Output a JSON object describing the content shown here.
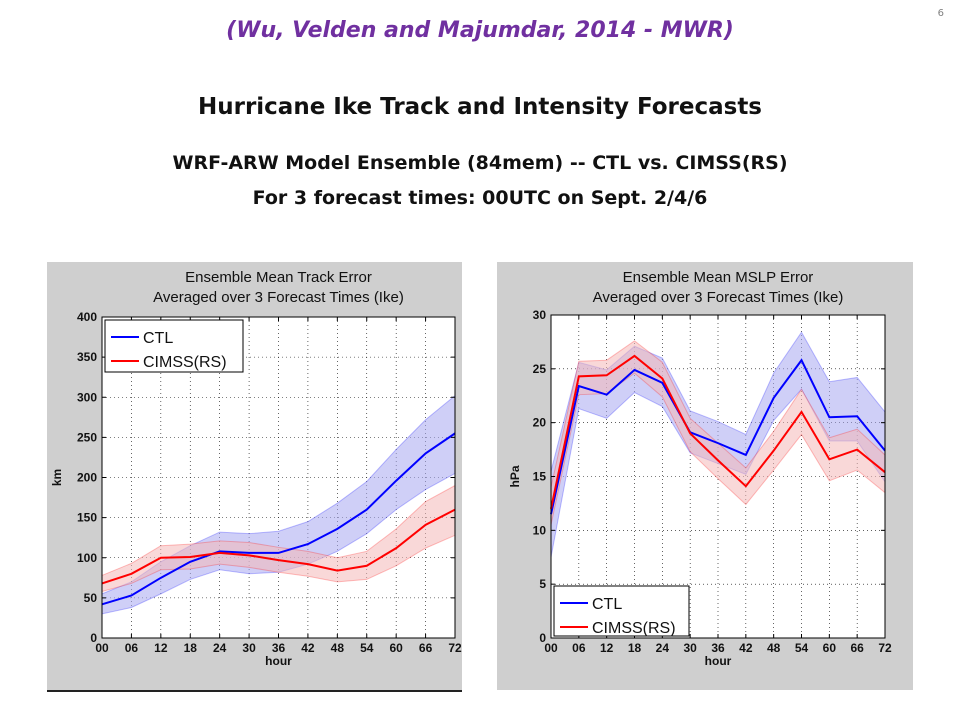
{
  "page_number": "6",
  "citation": "(Wu, Velden and Majumdar, 2014 - MWR)",
  "title": "Hurricane Ike Track and Intensity Forecasts",
  "subtitle_line1": "WRF-ARW Model Ensemble (84mem) -- CTL vs. CIMSS(RS)",
  "subtitle_line2": "For 3 forecast times: 00UTC on Sept. 2/4/6",
  "colors": {
    "ctl": "#0000ff",
    "cimss": "#ff0000",
    "ctl_band": "#a8a8f0",
    "cimss_band": "#f4b8b8",
    "overlap": "#d8a8e0"
  },
  "chart_data": [
    {
      "type": "line",
      "title": "Ensemble Mean Track Error",
      "subtitle": "Averaged over 3 Forecast Times (Ike)",
      "xlabel": "hour",
      "ylabel": "km",
      "x": [
        0,
        6,
        12,
        18,
        24,
        30,
        36,
        42,
        48,
        54,
        60,
        66,
        72
      ],
      "xticklabels": [
        "00",
        "06",
        "12",
        "18",
        "24",
        "30",
        "36",
        "42",
        "48",
        "54",
        "60",
        "66",
        "72"
      ],
      "ylim": [
        0,
        400
      ],
      "yticks": [
        0,
        50,
        100,
        150,
        200,
        250,
        300,
        350,
        400
      ],
      "grid": true,
      "legend_position": "top-left",
      "series": [
        {
          "name": "CTL",
          "values": [
            42,
            53,
            75,
            95,
            108,
            106,
            106,
            117,
            136,
            160,
            196,
            230,
            255
          ],
          "lower": [
            30,
            38,
            55,
            73,
            85,
            80,
            82,
            92,
            108,
            130,
            160,
            185,
            205
          ],
          "upper": [
            55,
            70,
            95,
            115,
            132,
            130,
            133,
            145,
            168,
            195,
            235,
            272,
            302
          ]
        },
        {
          "name": "CIMSS(RS)",
          "values": [
            68,
            80,
            100,
            101,
            106,
            103,
            97,
            92,
            84,
            90,
            112,
            141,
            160
          ],
          "lower": [
            58,
            68,
            85,
            86,
            92,
            88,
            82,
            77,
            70,
            73,
            90,
            112,
            128
          ],
          "upper": [
            78,
            93,
            115,
            117,
            121,
            119,
            113,
            108,
            100,
            108,
            136,
            170,
            190
          ]
        }
      ]
    },
    {
      "type": "line",
      "title": "Ensemble Mean MSLP Error",
      "subtitle": "Averaged over 3 Forecast Times (Ike)",
      "xlabel": "hour",
      "ylabel": "hPa",
      "x": [
        0,
        6,
        12,
        18,
        24,
        30,
        36,
        42,
        48,
        54,
        60,
        66,
        72
      ],
      "xticklabels": [
        "00",
        "06",
        "12",
        "18",
        "24",
        "30",
        "36",
        "42",
        "48",
        "54",
        "60",
        "66",
        "72"
      ],
      "ylim": [
        0,
        30
      ],
      "yticks": [
        0,
        5,
        10,
        15,
        20,
        25,
        30
      ],
      "grid": true,
      "legend_position": "bottom-left",
      "series": [
        {
          "name": "CTL",
          "values": [
            11.5,
            23.4,
            22.6,
            24.9,
            23.7,
            19.1,
            18.1,
            17.0,
            22.3,
            25.8,
            20.5,
            20.6,
            17.4
          ],
          "lower": [
            7.5,
            21.3,
            20.4,
            22.8,
            21.5,
            17.2,
            16.2,
            15.2,
            20.2,
            23.1,
            18.3,
            18.3,
            14.5
          ],
          "upper": [
            15.5,
            25.6,
            24.9,
            27.1,
            26.0,
            21.1,
            20.1,
            18.9,
            24.6,
            28.4,
            23.8,
            24.2,
            21.0
          ]
        },
        {
          "name": "CIMSS(RS)",
          "values": [
            12.0,
            24.3,
            24.4,
            26.2,
            24.1,
            19.0,
            16.5,
            14.1,
            17.4,
            21.0,
            16.6,
            17.5,
            15.4
          ],
          "lower": [
            10.5,
            22.6,
            22.7,
            24.6,
            22.4,
            17.3,
            14.8,
            12.4,
            15.6,
            18.9,
            14.6,
            15.6,
            13.5
          ],
          "upper": [
            14.0,
            25.7,
            25.8,
            27.6,
            25.6,
            20.4,
            18.1,
            15.8,
            19.2,
            23.1,
            18.6,
            19.4,
            17.0
          ]
        }
      ]
    }
  ]
}
